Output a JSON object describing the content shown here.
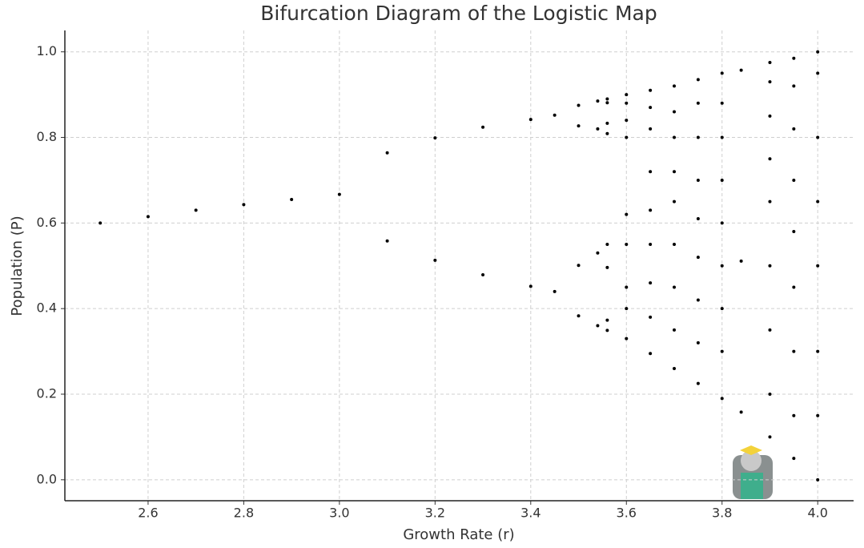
{
  "chart_data": {
    "type": "scatter",
    "title": "Bifurcation Diagram of the Logistic Map",
    "x_label": "Growth Rate (r)",
    "y_label": "Population (P)",
    "x": [
      2.5,
      2.6,
      2.7,
      2.8,
      2.9,
      3.0,
      3.1,
      3.1,
      3.2,
      3.2,
      3.3,
      3.3,
      3.4,
      3.4,
      3.45,
      3.45,
      3.5,
      3.5,
      3.5,
      3.5,
      3.54,
      3.54,
      3.54,
      3.54,
      3.56,
      3.56,
      3.56,
      3.56,
      3.56,
      3.56,
      3.56,
      3.56,
      3.6,
      3.6,
      3.6,
      3.6,
      3.6,
      3.6,
      3.6,
      3.6,
      3.6,
      3.65,
      3.65,
      3.65,
      3.65,
      3.65,
      3.65,
      3.65,
      3.65,
      3.65,
      3.7,
      3.7,
      3.7,
      3.7,
      3.7,
      3.7,
      3.7,
      3.7,
      3.7,
      3.75,
      3.75,
      3.75,
      3.75,
      3.75,
      3.75,
      3.75,
      3.75,
      3.75,
      3.8,
      3.8,
      3.8,
      3.8,
      3.8,
      3.8,
      3.8,
      3.8,
      3.8,
      3.84,
      3.84,
      3.84,
      3.9,
      3.9,
      3.9,
      3.9,
      3.9,
      3.9,
      3.9,
      3.9,
      3.9,
      3.95,
      3.95,
      3.95,
      3.95,
      3.95,
      3.95,
      3.95,
      3.95,
      3.95,
      4.0,
      4.0,
      4.0,
      4.0,
      4.0,
      4.0,
      4.0,
      4.0
    ],
    "values": [
      0.6,
      0.615,
      0.63,
      0.643,
      0.655,
      0.667,
      0.764,
      0.558,
      0.799,
      0.513,
      0.824,
      0.479,
      0.842,
      0.452,
      0.852,
      0.44,
      0.875,
      0.383,
      0.827,
      0.501,
      0.885,
      0.36,
      0.82,
      0.53,
      0.89,
      0.349,
      0.809,
      0.55,
      0.881,
      0.373,
      0.833,
      0.496,
      0.33,
      0.4,
      0.45,
      0.55,
      0.62,
      0.8,
      0.84,
      0.88,
      0.9,
      0.295,
      0.38,
      0.46,
      0.55,
      0.63,
      0.72,
      0.82,
      0.87,
      0.91,
      0.26,
      0.35,
      0.45,
      0.55,
      0.65,
      0.72,
      0.8,
      0.86,
      0.92,
      0.225,
      0.32,
      0.42,
      0.52,
      0.61,
      0.7,
      0.8,
      0.88,
      0.935,
      0.19,
      0.3,
      0.4,
      0.5,
      0.6,
      0.7,
      0.8,
      0.88,
      0.95,
      0.957,
      0.158,
      0.511,
      0.1,
      0.2,
      0.35,
      0.5,
      0.65,
      0.75,
      0.85,
      0.93,
      0.975,
      0.05,
      0.15,
      0.3,
      0.45,
      0.58,
      0.7,
      0.82,
      0.92,
      0.985,
      0.0,
      0.15,
      0.3,
      0.5,
      0.65,
      0.8,
      0.95,
      1.0
    ],
    "color": "#000000",
    "xlim": [
      2.426,
      4.075
    ],
    "ylim": [
      -0.049,
      1.05
    ],
    "xticks": [
      2.6,
      2.8,
      {
        "value": 3,
        "label": "3.0"
      },
      3.2,
      3.4,
      3.6,
      3.8,
      {
        "value": 4,
        "label": "4.0"
      }
    ],
    "yticks": [
      {
        "value": 0,
        "label": "0.0"
      },
      0.2,
      0.4,
      0.6,
      0.8,
      {
        "value": 1,
        "label": "1.0"
      }
    ],
    "grid": true
  }
}
